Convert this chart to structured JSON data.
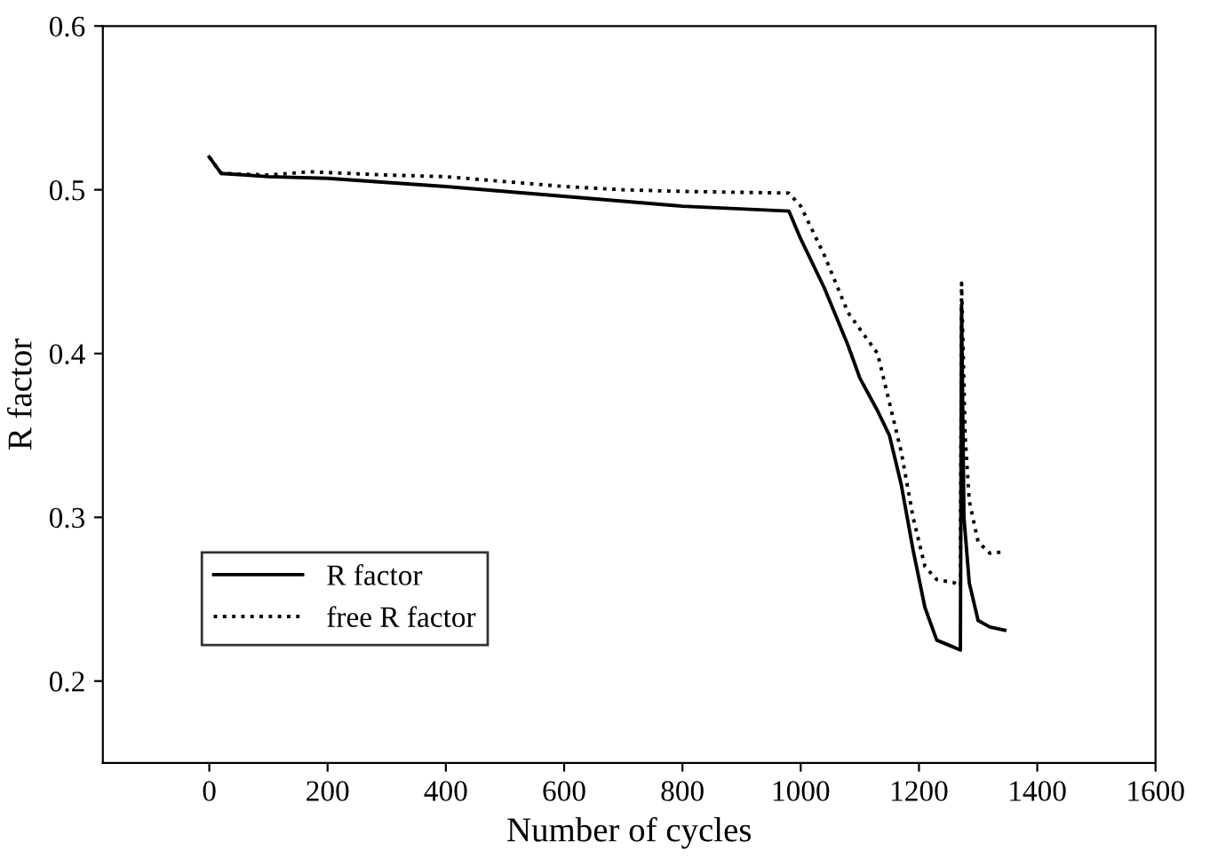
{
  "chart_data": {
    "type": "line",
    "xlabel": "Number of cycles",
    "ylabel": "R factor",
    "xlim": [
      -180,
      1600
    ],
    "xticks": [
      0,
      200,
      400,
      600,
      800,
      1000,
      1200,
      1400,
      1600
    ],
    "ylim": [
      0.15,
      0.6
    ],
    "yticks": [
      {
        "value": 0.2,
        "label": "0.2"
      },
      {
        "value": 0.3,
        "label": "0.3"
      },
      {
        "value": 0.4,
        "label": "0.4"
      },
      {
        "value": 0.5,
        "label": "0.5"
      },
      {
        "value": 0.6,
        "label": "0.6"
      }
    ],
    "legend": "lower left",
    "grid": false,
    "series": [
      {
        "name": "R factor",
        "color": "#000000",
        "line_style": "solid",
        "x": [
          0,
          20,
          100,
          200,
          400,
          600,
          800,
          980,
          1000,
          1040,
          1080,
          1100,
          1130,
          1150,
          1170,
          1190,
          1210,
          1230,
          1250,
          1270,
          1272,
          1276,
          1285,
          1300,
          1320,
          1345
        ],
        "values": [
          0.52,
          0.51,
          0.508,
          0.507,
          0.502,
          0.496,
          0.49,
          0.487,
          0.47,
          0.44,
          0.405,
          0.385,
          0.365,
          0.35,
          0.32,
          0.28,
          0.245,
          0.225,
          0.222,
          0.219,
          0.43,
          0.3,
          0.26,
          0.237,
          0.233,
          0.231
        ]
      },
      {
        "name": "free R factor",
        "color": "#000000",
        "line_style": "dotted",
        "x": [
          0,
          20,
          100,
          170,
          300,
          400,
          500,
          600,
          700,
          800,
          980,
          1000,
          1040,
          1080,
          1110,
          1130,
          1150,
          1170,
          1190,
          1210,
          1230,
          1260,
          1270,
          1272,
          1278,
          1285,
          1300,
          1320,
          1345
        ],
        "values": [
          0.52,
          0.51,
          0.509,
          0.511,
          0.509,
          0.508,
          0.505,
          0.502,
          0.5,
          0.499,
          0.498,
          0.49,
          0.46,
          0.425,
          0.41,
          0.4,
          0.37,
          0.34,
          0.3,
          0.27,
          0.262,
          0.26,
          0.258,
          0.443,
          0.35,
          0.31,
          0.285,
          0.278,
          0.279
        ]
      }
    ]
  }
}
